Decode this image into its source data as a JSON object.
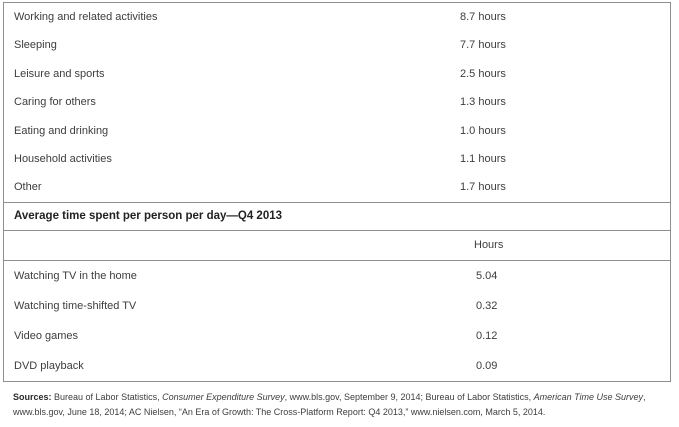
{
  "colors": {
    "border": "#8f8f8f",
    "text": "#3d3d3d",
    "header_text": "#222222",
    "background": "#ffffff"
  },
  "activities_table": {
    "rows": [
      {
        "label": "Working and related activities",
        "value": "8.7 hours"
      },
      {
        "label": "Sleeping",
        "value": "7.7 hours"
      },
      {
        "label": "Leisure and sports",
        "value": "2.5 hours"
      },
      {
        "label": "Caring for others",
        "value": "1.3 hours"
      },
      {
        "label": "Eating and drinking",
        "value": "1.0 hours"
      },
      {
        "label": "Household activities",
        "value": "1.1 hours"
      },
      {
        "label": "Other",
        "value": "1.7 hours"
      }
    ]
  },
  "media_table": {
    "section_header": "Average time spent per person per day—Q4 2013",
    "column_header": "Hours",
    "rows": [
      {
        "label": "Watching TV in the home",
        "value": "5.04"
      },
      {
        "label": "Watching time-shifted TV",
        "value": "0.32"
      },
      {
        "label": "Video games",
        "value": "0.12"
      },
      {
        "label": "DVD playback",
        "value": "0.09"
      }
    ]
  },
  "sources": {
    "prefix": "Sources:",
    "seg1": " Bureau of Labor Statistics, ",
    "italic1": "Consumer Expenditure Survey",
    "seg2": ", www.bls.gov, September 9, 2014; Bureau of Labor Statistics, ",
    "italic2": "American Time Use Survey",
    "seg3": ", www.bls.gov, June 18, 2014; AC Nielsen, “An Era of Growth: The Cross-Platform Report: Q4 2013,” www.nielsen.com, March 5, 2014."
  }
}
